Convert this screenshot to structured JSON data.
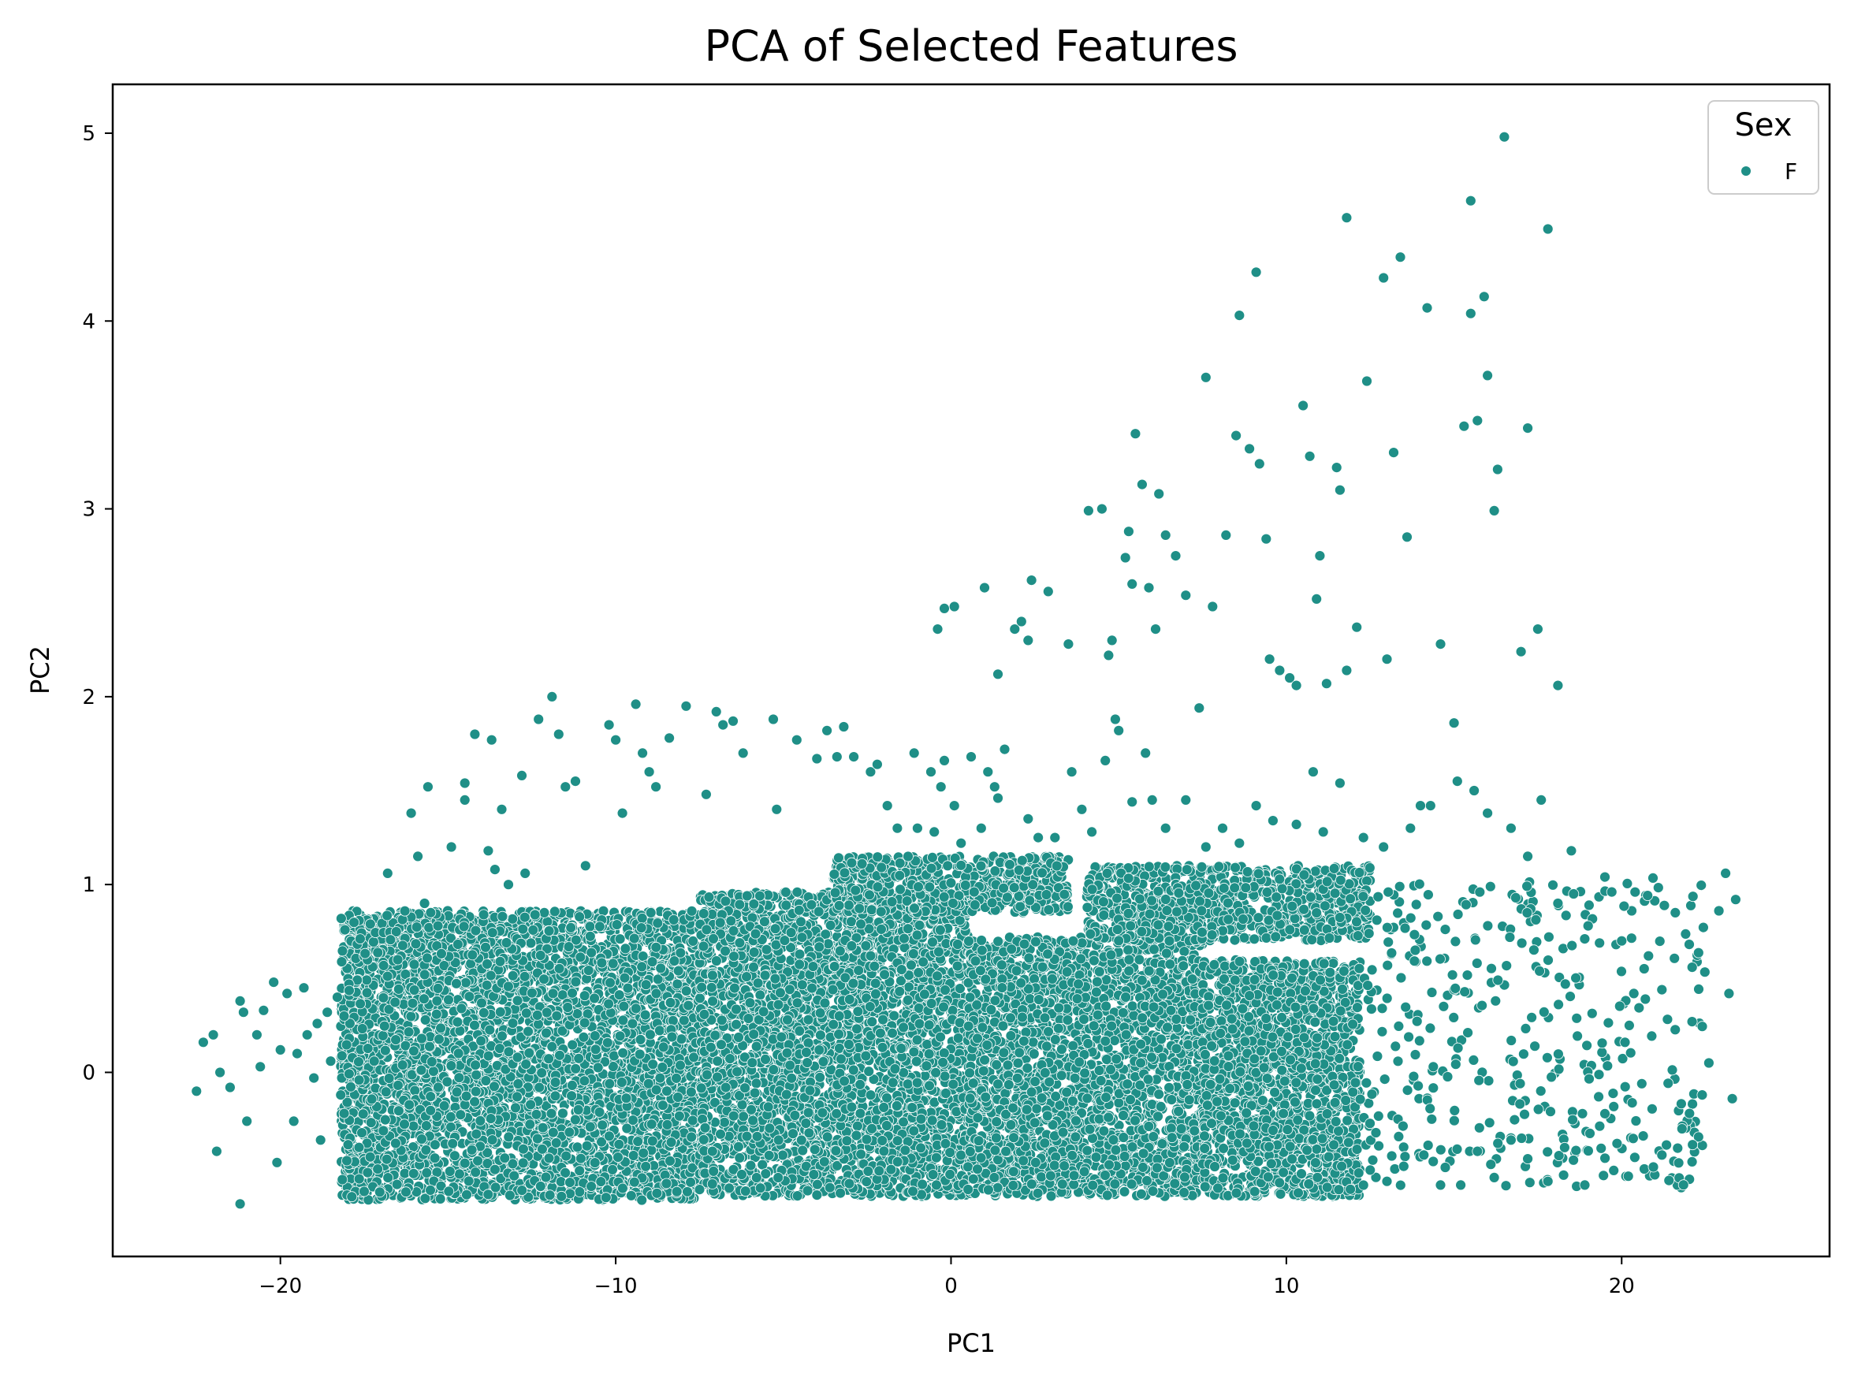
{
  "chart_data": {
    "type": "scatter",
    "title": "PCA of Selected Features",
    "xlabel": "PC1",
    "ylabel": "PC2",
    "xlim": [
      -25,
      26.2
    ],
    "ylim": [
      -0.98,
      5.26
    ],
    "xticks": [
      -20,
      -10,
      0,
      10,
      20
    ],
    "xtick_labels": [
      "−20",
      "−10",
      "0",
      "10",
      "20"
    ],
    "yticks": [
      0,
      1,
      2,
      3,
      4,
      5
    ],
    "ytick_labels": [
      "0",
      "1",
      "2",
      "3",
      "4",
      "5"
    ],
    "grid": false,
    "legend": {
      "title": "Sex",
      "placement": "top-right",
      "entries": [
        "F"
      ]
    },
    "series": [
      {
        "name": "F",
        "color": "#1f8f87",
        "points": [
          [
            -22.5,
            -0.1
          ],
          [
            -22.3,
            0.16
          ],
          [
            -22.0,
            0.2
          ],
          [
            -21.8,
            0.0
          ],
          [
            -21.9,
            -0.42
          ],
          [
            -21.5,
            -0.08
          ],
          [
            -21.2,
            0.38
          ],
          [
            -21.1,
            0.32
          ],
          [
            -21.2,
            -0.7
          ],
          [
            -21.0,
            -0.26
          ],
          [
            -20.7,
            0.2
          ],
          [
            -20.6,
            0.03
          ],
          [
            -20.5,
            0.33
          ],
          [
            -20.2,
            0.48
          ],
          [
            -20.1,
            -0.48
          ],
          [
            -20.0,
            0.12
          ],
          [
            -19.8,
            0.42
          ],
          [
            -19.6,
            -0.26
          ],
          [
            -19.5,
            0.1
          ],
          [
            -19.3,
            0.45
          ],
          [
            -19.2,
            0.2
          ],
          [
            -19.0,
            -0.03
          ],
          [
            -18.9,
            0.26
          ],
          [
            -18.8,
            -0.36
          ],
          [
            -18.6,
            0.32
          ],
          [
            -18.5,
            0.06
          ],
          [
            -18.3,
            0.4
          ],
          [
            -18.2,
            -0.12
          ],
          [
            -18.1,
            0.3
          ],
          [
            -16.8,
            1.06
          ],
          [
            -16.5,
            0.6
          ],
          [
            -16.1,
            1.38
          ],
          [
            -15.9,
            1.15
          ],
          [
            -15.6,
            1.52
          ],
          [
            -15.7,
            0.9
          ],
          [
            -15.3,
            0.78
          ],
          [
            -14.9,
            1.2
          ],
          [
            -14.5,
            1.45
          ],
          [
            -14.5,
            1.54
          ],
          [
            -14.2,
            1.8
          ],
          [
            -13.8,
            1.18
          ],
          [
            -13.7,
            1.77
          ],
          [
            -13.6,
            1.08
          ],
          [
            -13.4,
            1.4
          ],
          [
            -13.2,
            1.0
          ],
          [
            -12.8,
            1.58
          ],
          [
            -12.7,
            1.06
          ],
          [
            -12.3,
            1.88
          ],
          [
            -11.9,
            2.0
          ],
          [
            -11.7,
            1.8
          ],
          [
            -11.5,
            1.52
          ],
          [
            -11.2,
            1.55
          ],
          [
            -10.9,
            1.1
          ],
          [
            -10.2,
            1.85
          ],
          [
            -10.0,
            1.77
          ],
          [
            -9.8,
            1.38
          ],
          [
            -9.4,
            1.96
          ],
          [
            -9.2,
            1.7
          ],
          [
            -9.0,
            1.6
          ],
          [
            -8.8,
            1.52
          ],
          [
            -8.4,
            1.78
          ],
          [
            -7.9,
            1.95
          ],
          [
            -7.3,
            1.48
          ],
          [
            -7.0,
            1.92
          ],
          [
            -6.8,
            1.85
          ],
          [
            -6.5,
            1.87
          ],
          [
            -6.2,
            1.7
          ],
          [
            -5.3,
            1.88
          ],
          [
            -5.2,
            1.4
          ],
          [
            -4.6,
            1.77
          ],
          [
            -4.0,
            1.67
          ],
          [
            -3.7,
            1.82
          ],
          [
            -3.4,
            1.68
          ],
          [
            -3.2,
            1.84
          ],
          [
            -2.9,
            1.68
          ],
          [
            -2.4,
            1.6
          ],
          [
            -2.2,
            1.64
          ],
          [
            -1.9,
            1.42
          ],
          [
            -1.6,
            1.3
          ],
          [
            -1.1,
            1.7
          ],
          [
            -1.0,
            1.3
          ],
          [
            -0.6,
            1.6
          ],
          [
            -0.5,
            1.28
          ],
          [
            -0.3,
            1.52
          ],
          [
            -0.2,
            1.66
          ],
          [
            -0.1,
            1.1
          ],
          [
            0.1,
            1.42
          ],
          [
            0.3,
            1.22
          ],
          [
            0.6,
            1.68
          ],
          [
            0.9,
            1.3
          ],
          [
            1.1,
            1.6
          ],
          [
            1.3,
            1.52
          ],
          [
            1.4,
            1.46
          ],
          [
            1.6,
            1.72
          ],
          [
            2.3,
            1.35
          ],
          [
            2.6,
            1.25
          ],
          [
            3.1,
            1.25
          ],
          [
            3.6,
            1.6
          ],
          [
            3.9,
            1.4
          ],
          [
            4.2,
            1.28
          ],
          [
            4.6,
            1.66
          ],
          [
            5.0,
            1.82
          ],
          [
            5.4,
            1.44
          ],
          [
            5.8,
            1.7
          ],
          [
            6.0,
            1.45
          ],
          [
            6.4,
            1.3
          ],
          [
            7.0,
            1.45
          ],
          [
            7.6,
            1.2
          ],
          [
            8.1,
            1.3
          ],
          [
            8.6,
            1.22
          ],
          [
            9.1,
            1.42
          ],
          [
            9.6,
            1.34
          ],
          [
            10.3,
            1.32
          ],
          [
            10.8,
            1.6
          ],
          [
            11.1,
            1.28
          ],
          [
            11.6,
            1.54
          ],
          [
            12.3,
            1.25
          ],
          [
            12.9,
            1.2
          ],
          [
            13.7,
            1.3
          ],
          [
            14.3,
            1.42
          ],
          [
            15.1,
            1.55
          ],
          [
            15.6,
            1.5
          ],
          [
            16.0,
            1.38
          ],
          [
            16.7,
            1.3
          ],
          [
            17.2,
            1.15
          ],
          [
            17.6,
            1.45
          ],
          [
            18.1,
            0.9
          ],
          [
            18.5,
            1.18
          ],
          [
            19.0,
            0.78
          ],
          [
            19.5,
            1.04
          ],
          [
            20.0,
            0.7
          ],
          [
            20.4,
            0.96
          ],
          [
            20.8,
            0.62
          ],
          [
            21.2,
            0.44
          ],
          [
            21.6,
            0.85
          ],
          [
            22.1,
            0.27
          ],
          [
            22.6,
            0.05
          ],
          [
            22.9,
            0.86
          ],
          [
            23.1,
            1.06
          ],
          [
            23.2,
            0.42
          ],
          [
            23.4,
            0.92
          ],
          [
            23.3,
            -0.14
          ],
          [
            22.4,
            -0.12
          ],
          [
            21.8,
            -0.3
          ],
          [
            21.2,
            -0.44
          ],
          [
            20.6,
            -0.06
          ],
          [
            20.1,
            0.16
          ],
          [
            19.5,
            -0.22
          ],
          [
            18.9,
            -0.6
          ],
          [
            18.3,
            -0.4
          ],
          [
            17.8,
            -0.58
          ],
          [
            17.2,
            -0.46
          ],
          [
            16.7,
            -0.36
          ],
          [
            16.2,
            -0.56
          ],
          [
            15.7,
            -0.42
          ],
          [
            15.2,
            -0.6
          ],
          [
            14.6,
            -0.6
          ],
          [
            14.1,
            -0.44
          ],
          [
            13.5,
            -0.5
          ],
          [
            13.0,
            -0.58
          ],
          [
            12.5,
            -0.52
          ],
          [
            -0.4,
            2.36
          ],
          [
            -0.2,
            2.47
          ],
          [
            0.1,
            2.48
          ],
          [
            1.0,
            2.58
          ],
          [
            1.4,
            2.12
          ],
          [
            1.9,
            2.36
          ],
          [
            2.1,
            2.4
          ],
          [
            2.3,
            2.3
          ],
          [
            2.4,
            2.62
          ],
          [
            2.9,
            2.56
          ],
          [
            3.5,
            2.28
          ],
          [
            4.1,
            2.99
          ],
          [
            4.5,
            3.0
          ],
          [
            4.7,
            2.22
          ],
          [
            4.8,
            2.3
          ],
          [
            4.9,
            1.88
          ],
          [
            5.2,
            2.74
          ],
          [
            5.3,
            2.88
          ],
          [
            5.4,
            2.6
          ],
          [
            5.5,
            3.4
          ],
          [
            5.7,
            3.13
          ],
          [
            5.9,
            2.58
          ],
          [
            6.1,
            2.36
          ],
          [
            6.2,
            3.08
          ],
          [
            6.4,
            2.86
          ],
          [
            6.7,
            2.75
          ],
          [
            7.0,
            2.54
          ],
          [
            7.4,
            1.94
          ],
          [
            7.6,
            3.7
          ],
          [
            7.8,
            2.48
          ],
          [
            8.2,
            2.86
          ],
          [
            8.5,
            3.39
          ],
          [
            8.6,
            4.03
          ],
          [
            8.9,
            3.32
          ],
          [
            9.1,
            4.26
          ],
          [
            9.2,
            3.24
          ],
          [
            9.4,
            2.84
          ],
          [
            9.5,
            2.2
          ],
          [
            9.8,
            2.14
          ],
          [
            10.1,
            2.1
          ],
          [
            10.3,
            2.06
          ],
          [
            10.5,
            3.55
          ],
          [
            10.7,
            3.28
          ],
          [
            10.9,
            2.52
          ],
          [
            11.0,
            2.75
          ],
          [
            11.2,
            2.07
          ],
          [
            11.5,
            3.22
          ],
          [
            11.6,
            3.1
          ],
          [
            11.8,
            2.14
          ],
          [
            11.8,
            4.55
          ],
          [
            12.1,
            2.37
          ],
          [
            12.4,
            3.68
          ],
          [
            12.9,
            4.23
          ],
          [
            13.0,
            2.2
          ],
          [
            13.2,
            3.3
          ],
          [
            13.4,
            4.34
          ],
          [
            13.6,
            2.85
          ],
          [
            14.0,
            1.42
          ],
          [
            14.2,
            4.07
          ],
          [
            14.6,
            2.28
          ],
          [
            15.0,
            1.86
          ],
          [
            15.3,
            3.44
          ],
          [
            15.5,
            4.64
          ],
          [
            15.5,
            4.04
          ],
          [
            15.7,
            3.47
          ],
          [
            15.9,
            4.13
          ],
          [
            16.0,
            3.71
          ],
          [
            16.2,
            2.99
          ],
          [
            16.3,
            3.21
          ],
          [
            16.5,
            4.98
          ],
          [
            17.0,
            2.24
          ],
          [
            17.2,
            3.43
          ],
          [
            17.5,
            2.36
          ],
          [
            17.8,
            4.49
          ],
          [
            18.1,
            2.06
          ]
        ],
        "dense_regions": [
          {
            "x": [
              -18.2,
              -7.5
            ],
            "y": [
              -0.68,
              0.86
            ]
          },
          {
            "x": [
              -7.5,
              0.5
            ],
            "y": [
              -0.66,
              0.96
            ]
          },
          {
            "x": [
              0.5,
              7.5
            ],
            "y": [
              -0.66,
              0.72
            ]
          },
          {
            "x": [
              7.5,
              12.2
            ],
            "y": [
              -0.66,
              0.6
            ]
          },
          {
            "x": [
              -3.5,
              3.5
            ],
            "y": [
              0.85,
              1.15
            ]
          },
          {
            "x": [
              4.0,
              12.5
            ],
            "y": [
              0.7,
              1.1
            ]
          }
        ],
        "sparse_region": {
          "x": [
            12.2,
            22.5
          ],
          "y": [
            -0.62,
            1.05
          ]
        }
      }
    ]
  }
}
